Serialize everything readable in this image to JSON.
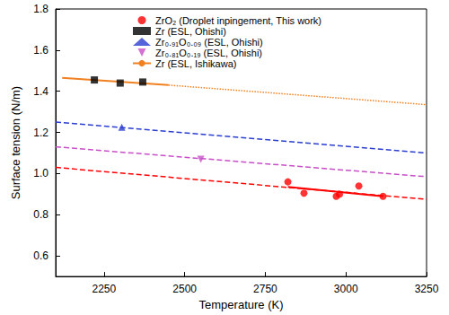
{
  "chart_data": {
    "type": "scatter",
    "x_label": "Temperature (K)",
    "y_label": "Surface tension (N/m)",
    "xlim": [
      2100,
      3250
    ],
    "xticks": [
      2250,
      2500,
      2750,
      3000,
      3250
    ],
    "ylim": [
      0.5,
      1.8
    ],
    "yticks": [
      0.6,
      0.8,
      {
        "value": 1,
        "label": "1.0"
      },
      1.2,
      1.4,
      1.6,
      1.8
    ],
    "grid": false,
    "legend": "upper right",
    "series": [
      {
        "name": "ZrO₂ (Droplet inpingement, This work)",
        "type": "scatter",
        "marker": "circle",
        "color": "#ff0000",
        "x": [
          2820,
          2870,
          2970,
          2980,
          3040,
          3115
        ],
        "values": [
          0.96,
          0.905,
          0.89,
          0.9,
          0.94,
          0.89
        ]
      },
      {
        "name": "Zr (ESL, Ohishi)",
        "type": "scatter",
        "marker": "square",
        "color": "#000000",
        "x": [
          2220,
          2300,
          2370
        ],
        "values": [
          1.455,
          1.44,
          1.445
        ]
      },
      {
        "name": "Zr₀.₉₁O₀.₀₉ (ESL, Ohishi)",
        "type": "scatter",
        "marker": "triangle",
        "color": "#2a3fd0",
        "x": [
          2305
        ],
        "values": [
          1.225
        ]
      },
      {
        "name": "Zr₀.₈₁O₀.₁₉ (ESL, Ohishi)",
        "type": "scatter",
        "marker": "triangle_down",
        "color": "#c84fc8",
        "x": [
          2550
        ],
        "values": [
          1.07
        ]
      },
      {
        "name": "Zr (ESL, Ishikawa)",
        "type": "line",
        "line_style": "solid",
        "color": "#f08020",
        "x": [
          2120,
          2450
        ],
        "values": [
          1.465,
          1.43
        ]
      },
      {
        "type": "line",
        "line_style": "dotted",
        "color": "#f08020",
        "x": [
          2450,
          3250
        ],
        "values": [
          1.43,
          1.335
        ]
      },
      {
        "type": "line",
        "line_style": "solid",
        "color": "#ff0000",
        "x": [
          2820,
          3115
        ],
        "values": [
          0.935,
          0.89
        ]
      },
      {
        "type": "line",
        "line_style": "dashed",
        "color": "#ff0000",
        "x": [
          2100,
          3250
        ],
        "values": [
          1.03,
          0.875
        ]
      },
      {
        "type": "line",
        "line_style": "dashed",
        "color": "#2a3fd0",
        "x": [
          2100,
          3250
        ],
        "values": [
          1.25,
          1.1
        ]
      },
      {
        "type": "line",
        "line_style": "dashed",
        "color": "#c84fc8",
        "x": [
          2100,
          3250
        ],
        "values": [
          1.13,
          0.985
        ]
      }
    ]
  }
}
